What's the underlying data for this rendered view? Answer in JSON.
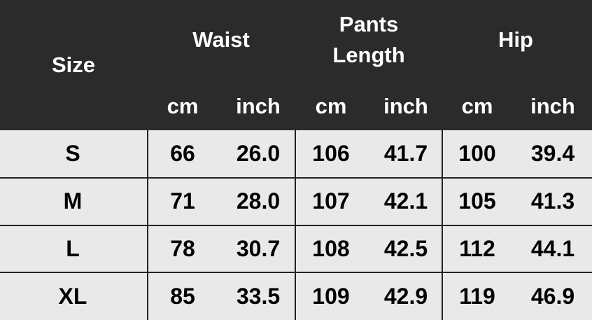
{
  "table": {
    "header": {
      "size": "Size",
      "groups": [
        "Waist",
        "Pants Length",
        "Hip"
      ],
      "units": [
        "cm",
        "inch",
        "cm",
        "inch",
        "cm",
        "inch"
      ]
    },
    "rows": [
      [
        "S",
        "66",
        "26.0",
        "106",
        "41.7",
        "100",
        "39.4"
      ],
      [
        "M",
        "71",
        "28.0",
        "107",
        "42.1",
        "105",
        "41.3"
      ],
      [
        "L",
        "78",
        "30.7",
        "108",
        "42.5",
        "112",
        "44.1"
      ],
      [
        "XL",
        "85",
        "33.5",
        "109",
        "42.9",
        "119",
        "46.9"
      ]
    ]
  }
}
